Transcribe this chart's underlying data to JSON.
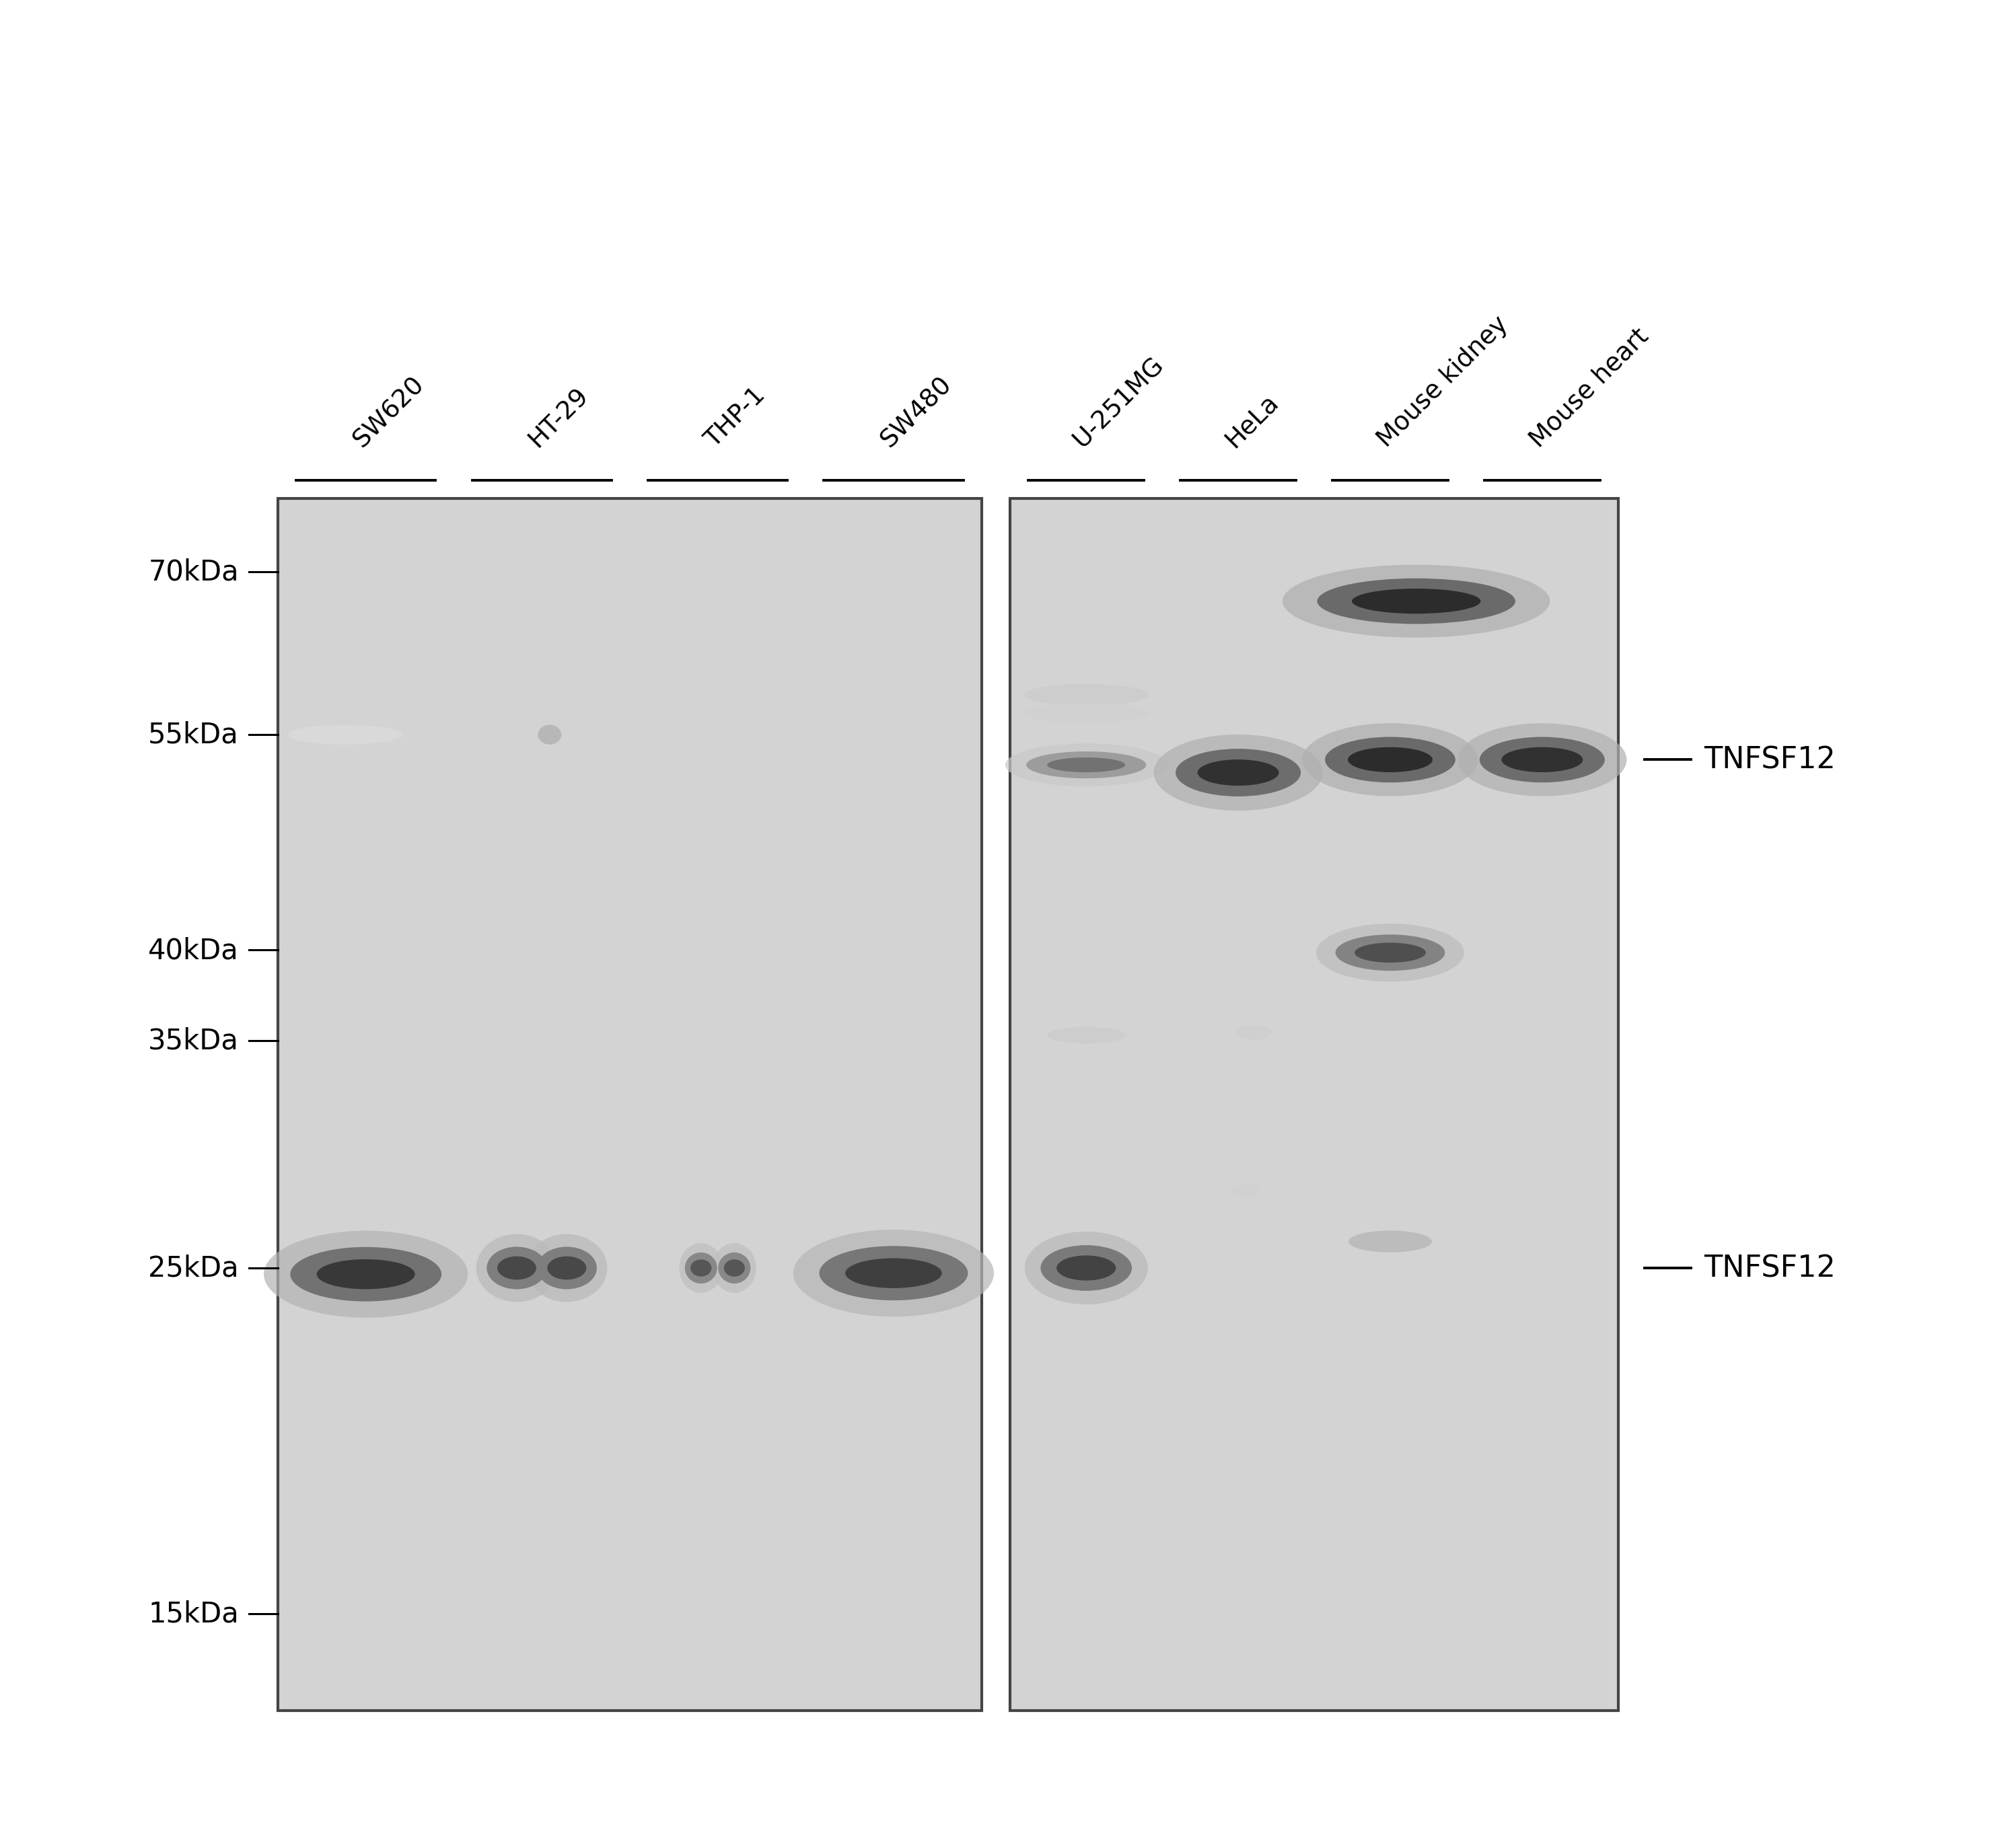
{
  "figure_width": 38.4,
  "figure_height": 35.1,
  "background_color": "#ffffff",
  "lane_labels": [
    "SW620",
    "HT-29",
    "THP-1",
    "SW480",
    "U-251MG",
    "HeLa",
    "Mouse kidney",
    "Mouse heart"
  ],
  "mw_markers": [
    "70kDa",
    "55kDa",
    "40kDa",
    "35kDa",
    "25kDa",
    "15kDa"
  ],
  "mw_values": [
    70,
    55,
    40,
    35,
    25,
    15
  ],
  "annotations": [
    "TNFSF12",
    "TNFSF12"
  ],
  "annotation_mw": [
    53,
    25
  ],
  "gel_bg": "#d3d3d3",
  "gel_edge": "#444444"
}
